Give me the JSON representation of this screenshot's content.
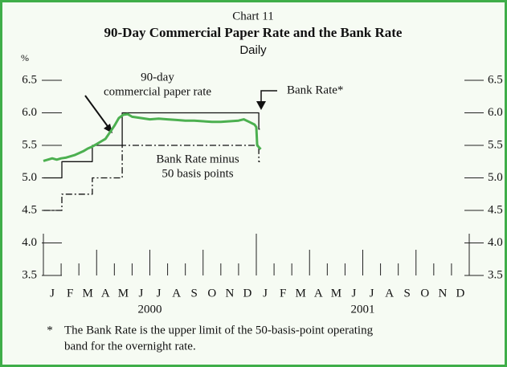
{
  "chart_data": {
    "type": "line",
    "chart_number": "Chart 11",
    "title": "90-Day Commercial Paper Rate and the Bank Rate",
    "subtitle": "Daily",
    "y_unit": "%",
    "ylim": [
      3.5,
      6.5
    ],
    "yticks": [
      3.5,
      {
        "value": 4,
        "label": "4.0"
      },
      4.5,
      {
        "value": 5,
        "label": "5.0"
      },
      5.5,
      {
        "value": 6,
        "label": "6.0"
      },
      6.5
    ],
    "xlim": [
      0,
      24
    ],
    "xticks": [
      0,
      1,
      2,
      3,
      4,
      5,
      6,
      7,
      8,
      9,
      10,
      11,
      12,
      13,
      14,
      15,
      16,
      17,
      18,
      19,
      20,
      21,
      22,
      23,
      24
    ],
    "month_labels": [
      "J",
      "F",
      "M",
      "A",
      "M",
      "J",
      "J",
      "A",
      "S",
      "O",
      "N",
      "D",
      "J",
      "F",
      "M",
      "A",
      "M",
      "J",
      "J",
      "A",
      "S",
      "O",
      "N",
      "D"
    ],
    "year_labels": [
      "2000",
      "2001"
    ],
    "series": [
      {
        "color": "#4cb050",
        "style": "solid-thick",
        "x": [
          0,
          0.25,
          0.5,
          0.75,
          1,
          1.25,
          1.5,
          1.75,
          2,
          2.25,
          2.5,
          2.75,
          3,
          3.25,
          3.5,
          3.75,
          4,
          4.25,
          4.5,
          4.75,
          5,
          5.5,
          6,
          6.5,
          7,
          7.5,
          8,
          8.5,
          9,
          9.5,
          10,
          10.5,
          11,
          11.3,
          11.6,
          11.9,
          12.0,
          12.05,
          12.15,
          12.25
        ],
        "values": [
          5.26,
          5.28,
          5.3,
          5.28,
          5.3,
          5.31,
          5.33,
          5.35,
          5.38,
          5.41,
          5.45,
          5.48,
          5.52,
          5.56,
          5.6,
          5.7,
          5.8,
          5.92,
          5.97,
          5.98,
          5.94,
          5.92,
          5.9,
          5.91,
          5.9,
          5.89,
          5.88,
          5.88,
          5.87,
          5.86,
          5.86,
          5.87,
          5.88,
          5.9,
          5.86,
          5.82,
          5.78,
          5.5,
          5.47,
          5.44
        ]
      },
      {
        "color": "#111111",
        "style": "solid",
        "x": [
          0,
          1.04,
          1.04,
          2.76,
          2.76,
          4.44,
          4.44,
          12.14,
          12.14,
          12.2
        ],
        "values": [
          5,
          5,
          5.25,
          5.25,
          5.5,
          5.5,
          6,
          6,
          5.75,
          5.75
        ]
      },
      {
        "color": "#111111",
        "style": "dash-dot",
        "x": [
          0,
          1.04,
          1.04,
          2.76,
          2.76,
          4.44,
          4.44,
          12.14,
          12.14,
          12.2
        ],
        "values": [
          4.5,
          4.5,
          4.75,
          4.75,
          5,
          5,
          5.5,
          5.5,
          5.25,
          5.25
        ]
      }
    ],
    "annotations": {
      "cp_rate": [
        "90-day",
        "commercial paper rate"
      ],
      "bank_rate": "Bank Rate*",
      "bank_rate_minus": [
        "Bank Rate minus",
        "50 basis points"
      ]
    },
    "footnote": {
      "marker": "*",
      "lines": [
        "The Bank Rate is the upper limit of the 50-basis-point operating",
        "band for the overnight rate."
      ]
    }
  }
}
